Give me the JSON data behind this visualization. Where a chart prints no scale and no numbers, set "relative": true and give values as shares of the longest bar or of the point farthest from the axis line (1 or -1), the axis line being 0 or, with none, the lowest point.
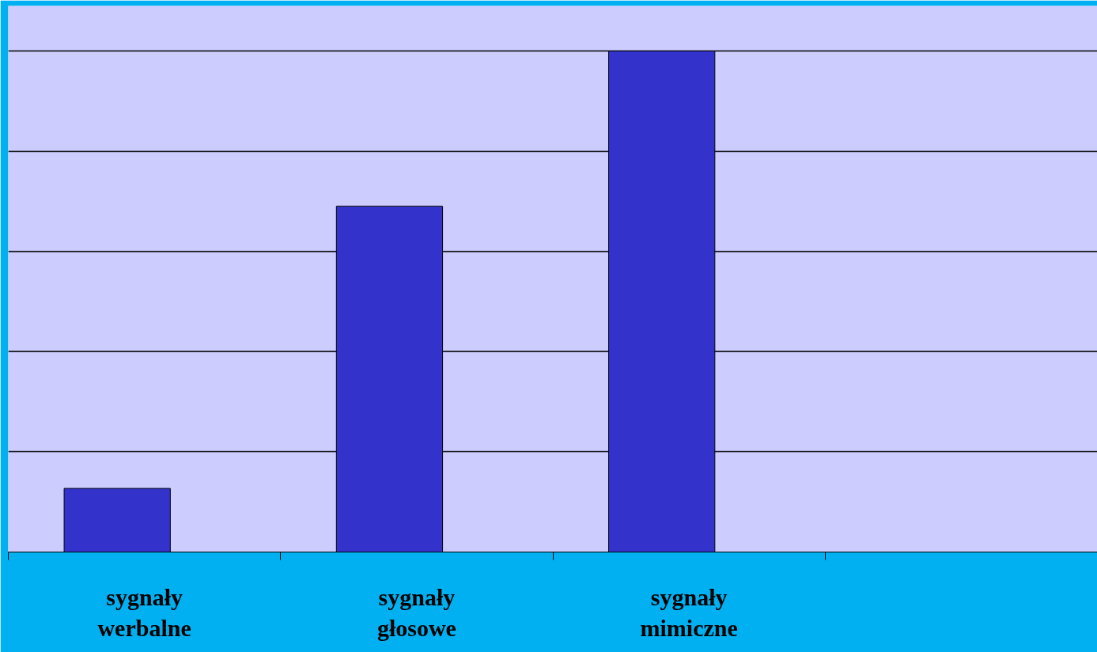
{
  "chart_data": {
    "type": "bar",
    "relative": true,
    "categories": [
      "sygnały werbalne",
      "sygnały głosowe",
      "sygnały mimiczne",
      null
    ],
    "values": [
      0.127,
      0.69,
      1,
      null
    ],
    "color": "#3333cc",
    "grid": "y"
  }
}
